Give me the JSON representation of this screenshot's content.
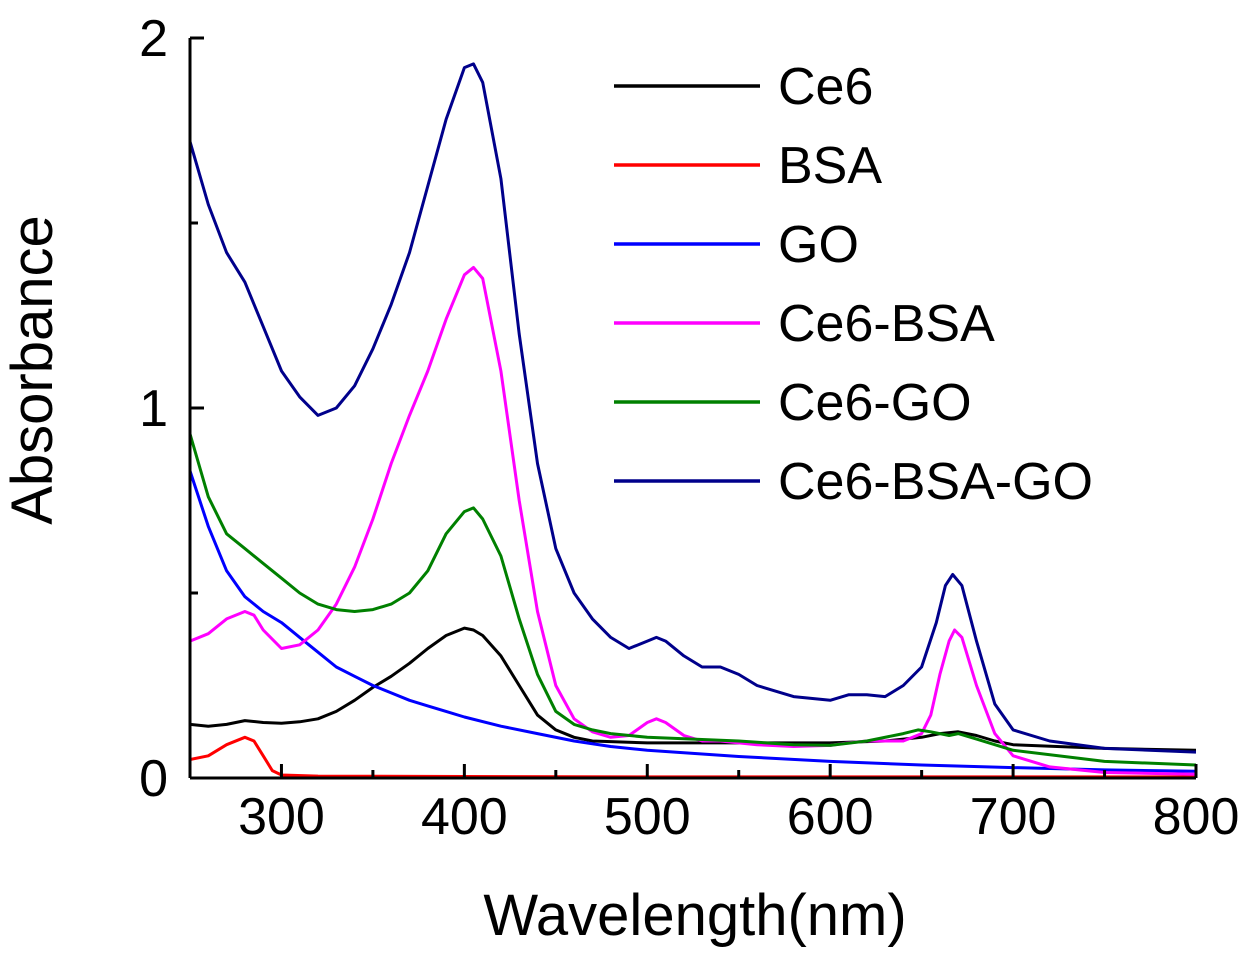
{
  "chart_data": {
    "type": "line",
    "title": "",
    "xlabel": "Wavelength(nm)",
    "ylabel": "Absorbance",
    "xlim": [
      250,
      800
    ],
    "ylim": [
      0,
      2
    ],
    "xticks": [
      300,
      400,
      500,
      600,
      700,
      800
    ],
    "xtick_labels": [
      "300",
      "400",
      "500",
      "600",
      "700",
      "800"
    ],
    "yticks": [
      0,
      1,
      2
    ],
    "ytick_labels": [
      "0",
      "1",
      "2"
    ],
    "grid": false,
    "legend_position": "top-right",
    "series": [
      {
        "name": "Ce6",
        "color": "#000000",
        "points": [
          [
            250,
            0.145
          ],
          [
            260,
            0.14
          ],
          [
            270,
            0.145
          ],
          [
            280,
            0.155
          ],
          [
            290,
            0.15
          ],
          [
            300,
            0.148
          ],
          [
            310,
            0.152
          ],
          [
            320,
            0.16
          ],
          [
            330,
            0.18
          ],
          [
            340,
            0.21
          ],
          [
            350,
            0.245
          ],
          [
            360,
            0.275
          ],
          [
            370,
            0.31
          ],
          [
            380,
            0.35
          ],
          [
            390,
            0.385
          ],
          [
            400,
            0.405
          ],
          [
            405,
            0.4
          ],
          [
            410,
            0.385
          ],
          [
            420,
            0.33
          ],
          [
            430,
            0.25
          ],
          [
            440,
            0.17
          ],
          [
            450,
            0.13
          ],
          [
            460,
            0.11
          ],
          [
            470,
            0.1
          ],
          [
            500,
            0.095
          ],
          [
            550,
            0.095
          ],
          [
            600,
            0.095
          ],
          [
            630,
            0.1
          ],
          [
            650,
            0.11
          ],
          [
            660,
            0.12
          ],
          [
            670,
            0.125
          ],
          [
            680,
            0.115
          ],
          [
            690,
            0.1
          ],
          [
            700,
            0.09
          ],
          [
            750,
            0.08
          ],
          [
            800,
            0.075
          ]
        ]
      },
      {
        "name": "BSA",
        "color": "#ff0000",
        "points": [
          [
            250,
            0.05
          ],
          [
            260,
            0.06
          ],
          [
            270,
            0.09
          ],
          [
            280,
            0.11
          ],
          [
            285,
            0.1
          ],
          [
            290,
            0.06
          ],
          [
            295,
            0.02
          ],
          [
            300,
            0.008
          ],
          [
            320,
            0.005
          ],
          [
            400,
            0.004
          ],
          [
            500,
            0.003
          ],
          [
            600,
            0.003
          ],
          [
            700,
            0.003
          ],
          [
            800,
            0.003
          ]
        ]
      },
      {
        "name": "GO",
        "color": "#0000ff",
        "points": [
          [
            250,
            0.83
          ],
          [
            260,
            0.68
          ],
          [
            270,
            0.56
          ],
          [
            280,
            0.49
          ],
          [
            290,
            0.45
          ],
          [
            300,
            0.42
          ],
          [
            310,
            0.38
          ],
          [
            320,
            0.34
          ],
          [
            330,
            0.3
          ],
          [
            340,
            0.275
          ],
          [
            350,
            0.25
          ],
          [
            360,
            0.23
          ],
          [
            370,
            0.21
          ],
          [
            380,
            0.195
          ],
          [
            390,
            0.18
          ],
          [
            400,
            0.165
          ],
          [
            420,
            0.14
          ],
          [
            440,
            0.12
          ],
          [
            460,
            0.1
          ],
          [
            480,
            0.085
          ],
          [
            500,
            0.075
          ],
          [
            550,
            0.058
          ],
          [
            600,
            0.045
          ],
          [
            650,
            0.035
          ],
          [
            700,
            0.028
          ],
          [
            750,
            0.022
          ],
          [
            800,
            0.018
          ]
        ]
      },
      {
        "name": "Ce6-BSA",
        "color": "#ff00ff",
        "points": [
          [
            250,
            0.37
          ],
          [
            260,
            0.39
          ],
          [
            270,
            0.43
          ],
          [
            280,
            0.45
          ],
          [
            285,
            0.44
          ],
          [
            290,
            0.4
          ],
          [
            300,
            0.35
          ],
          [
            310,
            0.36
          ],
          [
            320,
            0.4
          ],
          [
            330,
            0.47
          ],
          [
            340,
            0.57
          ],
          [
            350,
            0.7
          ],
          [
            360,
            0.85
          ],
          [
            370,
            0.98
          ],
          [
            380,
            1.1
          ],
          [
            390,
            1.24
          ],
          [
            400,
            1.36
          ],
          [
            405,
            1.38
          ],
          [
            410,
            1.35
          ],
          [
            420,
            1.1
          ],
          [
            430,
            0.75
          ],
          [
            440,
            0.45
          ],
          [
            450,
            0.25
          ],
          [
            460,
            0.16
          ],
          [
            470,
            0.125
          ],
          [
            480,
            0.11
          ],
          [
            490,
            0.115
          ],
          [
            500,
            0.15
          ],
          [
            505,
            0.16
          ],
          [
            510,
            0.15
          ],
          [
            520,
            0.115
          ],
          [
            530,
            0.1
          ],
          [
            540,
            0.1
          ],
          [
            560,
            0.09
          ],
          [
            580,
            0.085
          ],
          [
            600,
            0.088
          ],
          [
            610,
            0.095
          ],
          [
            620,
            0.1
          ],
          [
            640,
            0.1
          ],
          [
            650,
            0.12
          ],
          [
            655,
            0.17
          ],
          [
            660,
            0.28
          ],
          [
            665,
            0.37
          ],
          [
            668,
            0.4
          ],
          [
            672,
            0.38
          ],
          [
            680,
            0.25
          ],
          [
            690,
            0.12
          ],
          [
            700,
            0.06
          ],
          [
            720,
            0.03
          ],
          [
            750,
            0.015
          ],
          [
            800,
            0.01
          ]
        ]
      },
      {
        "name": "Ce6-GO",
        "color": "#008000",
        "points": [
          [
            250,
            0.93
          ],
          [
            260,
            0.76
          ],
          [
            270,
            0.66
          ],
          [
            280,
            0.62
          ],
          [
            290,
            0.58
          ],
          [
            300,
            0.54
          ],
          [
            310,
            0.5
          ],
          [
            320,
            0.47
          ],
          [
            330,
            0.455
          ],
          [
            340,
            0.45
          ],
          [
            350,
            0.455
          ],
          [
            360,
            0.47
          ],
          [
            370,
            0.5
          ],
          [
            380,
            0.56
          ],
          [
            390,
            0.66
          ],
          [
            400,
            0.72
          ],
          [
            405,
            0.73
          ],
          [
            410,
            0.7
          ],
          [
            420,
            0.6
          ],
          [
            430,
            0.43
          ],
          [
            440,
            0.28
          ],
          [
            450,
            0.18
          ],
          [
            460,
            0.145
          ],
          [
            470,
            0.13
          ],
          [
            480,
            0.12
          ],
          [
            500,
            0.11
          ],
          [
            550,
            0.1
          ],
          [
            580,
            0.09
          ],
          [
            600,
            0.088
          ],
          [
            620,
            0.1
          ],
          [
            640,
            0.12
          ],
          [
            648,
            0.13
          ],
          [
            655,
            0.125
          ],
          [
            665,
            0.115
          ],
          [
            670,
            0.12
          ],
          [
            680,
            0.105
          ],
          [
            700,
            0.075
          ],
          [
            750,
            0.045
          ],
          [
            800,
            0.035
          ]
        ]
      },
      {
        "name": "Ce6-BSA-GO",
        "color": "#00008b",
        "points": [
          [
            250,
            1.72
          ],
          [
            260,
            1.55
          ],
          [
            270,
            1.42
          ],
          [
            280,
            1.34
          ],
          [
            290,
            1.22
          ],
          [
            300,
            1.1
          ],
          [
            310,
            1.03
          ],
          [
            320,
            0.98
          ],
          [
            330,
            1.0
          ],
          [
            340,
            1.06
          ],
          [
            350,
            1.16
          ],
          [
            360,
            1.28
          ],
          [
            370,
            1.42
          ],
          [
            380,
            1.6
          ],
          [
            390,
            1.78
          ],
          [
            400,
            1.92
          ],
          [
            405,
            1.93
          ],
          [
            410,
            1.88
          ],
          [
            420,
            1.62
          ],
          [
            430,
            1.2
          ],
          [
            440,
            0.85
          ],
          [
            450,
            0.62
          ],
          [
            460,
            0.5
          ],
          [
            470,
            0.43
          ],
          [
            480,
            0.38
          ],
          [
            490,
            0.35
          ],
          [
            500,
            0.37
          ],
          [
            505,
            0.38
          ],
          [
            510,
            0.37
          ],
          [
            520,
            0.33
          ],
          [
            530,
            0.3
          ],
          [
            540,
            0.3
          ],
          [
            550,
            0.28
          ],
          [
            560,
            0.25
          ],
          [
            580,
            0.22
          ],
          [
            600,
            0.21
          ],
          [
            610,
            0.225
          ],
          [
            620,
            0.225
          ],
          [
            630,
            0.22
          ],
          [
            640,
            0.25
          ],
          [
            650,
            0.3
          ],
          [
            658,
            0.42
          ],
          [
            663,
            0.52
          ],
          [
            667,
            0.55
          ],
          [
            672,
            0.52
          ],
          [
            680,
            0.37
          ],
          [
            690,
            0.2
          ],
          [
            700,
            0.13
          ],
          [
            720,
            0.1
          ],
          [
            750,
            0.08
          ],
          [
            800,
            0.07
          ]
        ]
      }
    ]
  }
}
